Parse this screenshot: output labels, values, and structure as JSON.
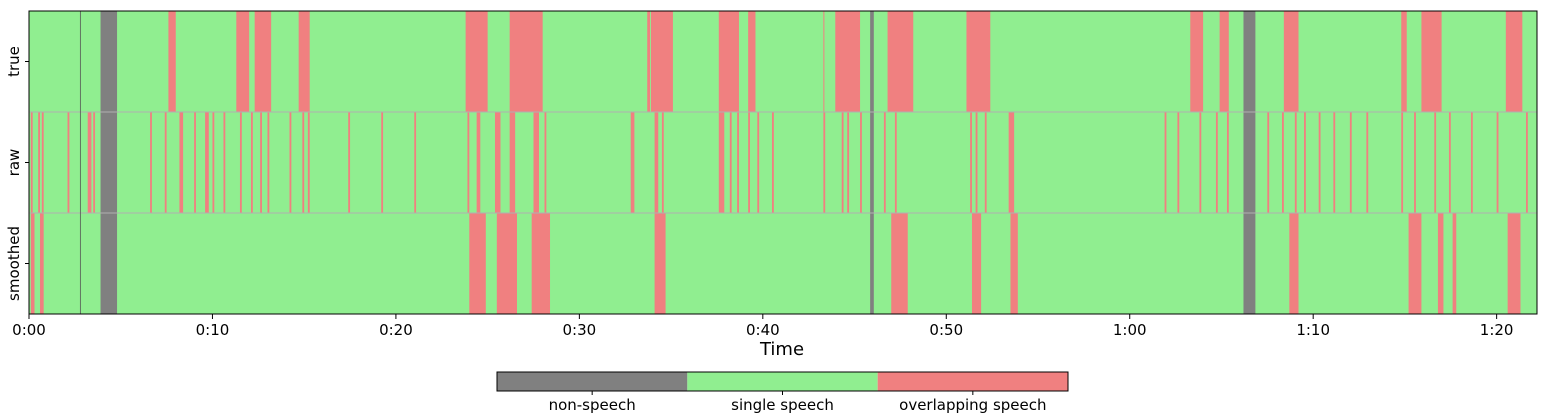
{
  "chart_data": {
    "type": "heatmap",
    "xlabel": "Time",
    "x_unit": "seconds",
    "xlim": [
      0,
      82.2
    ],
    "x_ticks": [
      {
        "value": 0,
        "label": "0:00"
      },
      {
        "value": 10,
        "label": "0:10"
      },
      {
        "value": 20,
        "label": "0:20"
      },
      {
        "value": 30,
        "label": "0:30"
      },
      {
        "value": 40,
        "label": "0:40"
      },
      {
        "value": 50,
        "label": "0:50"
      },
      {
        "value": 60,
        "label": "1:00"
      },
      {
        "value": 70,
        "label": "1:10"
      },
      {
        "value": 80,
        "label": "1:20"
      }
    ],
    "rows": [
      "true",
      "raw",
      "smoothed"
    ],
    "class_colors": {
      "non-speech": "#808080",
      "single speech": "#90EE90",
      "overlapping speech": "#F08080"
    },
    "legend": {
      "placement": "bottom-center",
      "entries": [
        "non-speech",
        "single speech",
        "overlapping speech"
      ]
    },
    "default_class": "single speech",
    "segments": {
      "true": [
        {
          "start": 3.9,
          "end": 4.8,
          "class": "non-speech"
        },
        {
          "start": 7.6,
          "end": 8.0,
          "class": "overlapping speech"
        },
        {
          "start": 11.3,
          "end": 12.0,
          "class": "overlapping speech"
        },
        {
          "start": 12.3,
          "end": 13.2,
          "class": "overlapping speech"
        },
        {
          "start": 14.7,
          "end": 15.3,
          "class": "overlapping speech"
        },
        {
          "start": 23.8,
          "end": 25.0,
          "class": "overlapping speech"
        },
        {
          "start": 26.2,
          "end": 28.0,
          "class": "overlapping speech"
        },
        {
          "start": 33.7,
          "end": 33.85,
          "class": "overlapping speech"
        },
        {
          "start": 33.9,
          "end": 35.1,
          "class": "overlapping speech"
        },
        {
          "start": 37.6,
          "end": 38.7,
          "class": "overlapping speech"
        },
        {
          "start": 39.2,
          "end": 39.6,
          "class": "overlapping speech"
        },
        {
          "start": 43.3,
          "end": 43.35,
          "class": "overlapping speech"
        },
        {
          "start": 43.95,
          "end": 45.3,
          "class": "overlapping speech"
        },
        {
          "start": 45.85,
          "end": 46.05,
          "class": "non-speech"
        },
        {
          "start": 46.8,
          "end": 48.2,
          "class": "overlapping speech"
        },
        {
          "start": 51.1,
          "end": 52.4,
          "class": "overlapping speech"
        },
        {
          "start": 63.3,
          "end": 64.0,
          "class": "overlapping speech"
        },
        {
          "start": 64.9,
          "end": 65.4,
          "class": "overlapping speech"
        },
        {
          "start": 66.2,
          "end": 66.85,
          "class": "non-speech"
        },
        {
          "start": 68.4,
          "end": 69.2,
          "class": "overlapping speech"
        },
        {
          "start": 74.8,
          "end": 75.1,
          "class": "overlapping speech"
        },
        {
          "start": 75.9,
          "end": 77.0,
          "class": "overlapping speech"
        },
        {
          "start": 80.5,
          "end": 81.4,
          "class": "overlapping speech"
        }
      ],
      "raw": [
        {
          "start": 0.1,
          "end": 0.2,
          "class": "overlapping speech"
        },
        {
          "start": 0.5,
          "end": 0.6,
          "class": "overlapping speech"
        },
        {
          "start": 0.7,
          "end": 0.8,
          "class": "overlapping speech"
        },
        {
          "start": 2.1,
          "end": 2.2,
          "class": "overlapping speech"
        },
        {
          "start": 3.2,
          "end": 3.4,
          "class": "overlapping speech"
        },
        {
          "start": 3.5,
          "end": 3.6,
          "class": "overlapping speech"
        },
        {
          "start": 3.9,
          "end": 4.8,
          "class": "non-speech"
        },
        {
          "start": 6.6,
          "end": 6.7,
          "class": "overlapping speech"
        },
        {
          "start": 7.4,
          "end": 7.5,
          "class": "overlapping speech"
        },
        {
          "start": 8.2,
          "end": 8.4,
          "class": "overlapping speech"
        },
        {
          "start": 9.0,
          "end": 9.1,
          "class": "overlapping speech"
        },
        {
          "start": 9.6,
          "end": 9.8,
          "class": "overlapping speech"
        },
        {
          "start": 10.0,
          "end": 10.1,
          "class": "overlapping speech"
        },
        {
          "start": 10.6,
          "end": 10.7,
          "class": "overlapping speech"
        },
        {
          "start": 11.5,
          "end": 11.6,
          "class": "overlapping speech"
        },
        {
          "start": 12.1,
          "end": 12.2,
          "class": "overlapping speech"
        },
        {
          "start": 12.6,
          "end": 12.7,
          "class": "overlapping speech"
        },
        {
          "start": 13.0,
          "end": 13.1,
          "class": "overlapping speech"
        },
        {
          "start": 14.2,
          "end": 14.3,
          "class": "overlapping speech"
        },
        {
          "start": 14.9,
          "end": 15.0,
          "class": "overlapping speech"
        },
        {
          "start": 15.2,
          "end": 15.3,
          "class": "overlapping speech"
        },
        {
          "start": 17.4,
          "end": 17.5,
          "class": "overlapping speech"
        },
        {
          "start": 19.2,
          "end": 19.3,
          "class": "overlapping speech"
        },
        {
          "start": 21.0,
          "end": 21.1,
          "class": "overlapping speech"
        },
        {
          "start": 23.9,
          "end": 24.0,
          "class": "overlapping speech"
        },
        {
          "start": 24.4,
          "end": 24.6,
          "class": "overlapping speech"
        },
        {
          "start": 25.4,
          "end": 25.7,
          "class": "overlapping speech"
        },
        {
          "start": 26.2,
          "end": 26.5,
          "class": "overlapping speech"
        },
        {
          "start": 27.5,
          "end": 27.8,
          "class": "overlapping speech"
        },
        {
          "start": 28.1,
          "end": 28.2,
          "class": "overlapping speech"
        },
        {
          "start": 32.8,
          "end": 33.0,
          "class": "overlapping speech"
        },
        {
          "start": 34.1,
          "end": 34.3,
          "class": "overlapping speech"
        },
        {
          "start": 34.5,
          "end": 34.6,
          "class": "overlapping speech"
        },
        {
          "start": 37.6,
          "end": 37.9,
          "class": "overlapping speech"
        },
        {
          "start": 38.2,
          "end": 38.3,
          "class": "overlapping speech"
        },
        {
          "start": 38.6,
          "end": 38.7,
          "class": "overlapping speech"
        },
        {
          "start": 39.2,
          "end": 39.3,
          "class": "overlapping speech"
        },
        {
          "start": 39.7,
          "end": 39.8,
          "class": "overlapping speech"
        },
        {
          "start": 40.5,
          "end": 40.6,
          "class": "overlapping speech"
        },
        {
          "start": 43.3,
          "end": 43.4,
          "class": "overlapping speech"
        },
        {
          "start": 44.3,
          "end": 44.4,
          "class": "overlapping speech"
        },
        {
          "start": 44.6,
          "end": 44.7,
          "class": "overlapping speech"
        },
        {
          "start": 45.3,
          "end": 45.4,
          "class": "overlapping speech"
        },
        {
          "start": 45.85,
          "end": 46.05,
          "class": "non-speech"
        },
        {
          "start": 46.6,
          "end": 46.7,
          "class": "overlapping speech"
        },
        {
          "start": 47.2,
          "end": 47.3,
          "class": "overlapping speech"
        },
        {
          "start": 51.3,
          "end": 51.4,
          "class": "overlapping speech"
        },
        {
          "start": 51.6,
          "end": 51.7,
          "class": "overlapping speech"
        },
        {
          "start": 52.1,
          "end": 52.2,
          "class": "overlapping speech"
        },
        {
          "start": 53.4,
          "end": 53.7,
          "class": "overlapping speech"
        },
        {
          "start": 61.9,
          "end": 62.0,
          "class": "overlapping speech"
        },
        {
          "start": 62.6,
          "end": 62.7,
          "class": "overlapping speech"
        },
        {
          "start": 63.8,
          "end": 63.9,
          "class": "overlapping speech"
        },
        {
          "start": 64.7,
          "end": 64.8,
          "class": "overlapping speech"
        },
        {
          "start": 65.3,
          "end": 65.4,
          "class": "overlapping speech"
        },
        {
          "start": 66.2,
          "end": 66.85,
          "class": "non-speech"
        },
        {
          "start": 67.5,
          "end": 67.6,
          "class": "overlapping speech"
        },
        {
          "start": 68.3,
          "end": 68.4,
          "class": "overlapping speech"
        },
        {
          "start": 69.0,
          "end": 69.1,
          "class": "overlapping speech"
        },
        {
          "start": 69.5,
          "end": 69.6,
          "class": "overlapping speech"
        },
        {
          "start": 70.3,
          "end": 70.4,
          "class": "overlapping speech"
        },
        {
          "start": 71.1,
          "end": 71.2,
          "class": "overlapping speech"
        },
        {
          "start": 72.0,
          "end": 72.1,
          "class": "overlapping speech"
        },
        {
          "start": 72.9,
          "end": 73.0,
          "class": "overlapping speech"
        },
        {
          "start": 74.8,
          "end": 74.9,
          "class": "overlapping speech"
        },
        {
          "start": 75.5,
          "end": 75.6,
          "class": "overlapping speech"
        },
        {
          "start": 76.6,
          "end": 76.7,
          "class": "overlapping speech"
        },
        {
          "start": 77.4,
          "end": 77.5,
          "class": "overlapping speech"
        },
        {
          "start": 78.6,
          "end": 78.7,
          "class": "overlapping speech"
        },
        {
          "start": 80.0,
          "end": 80.1,
          "class": "overlapping speech"
        },
        {
          "start": 81.6,
          "end": 81.7,
          "class": "overlapping speech"
        }
      ],
      "smoothed": [
        {
          "start": 0.1,
          "end": 0.3,
          "class": "overlapping speech"
        },
        {
          "start": 0.6,
          "end": 0.8,
          "class": "overlapping speech"
        },
        {
          "start": 3.9,
          "end": 4.8,
          "class": "non-speech"
        },
        {
          "start": 24.0,
          "end": 24.9,
          "class": "overlapping speech"
        },
        {
          "start": 25.5,
          "end": 26.6,
          "class": "overlapping speech"
        },
        {
          "start": 27.4,
          "end": 28.4,
          "class": "overlapping speech"
        },
        {
          "start": 34.1,
          "end": 34.7,
          "class": "overlapping speech"
        },
        {
          "start": 45.85,
          "end": 46.05,
          "class": "non-speech"
        },
        {
          "start": 47.0,
          "end": 47.9,
          "class": "overlapping speech"
        },
        {
          "start": 51.4,
          "end": 51.9,
          "class": "overlapping speech"
        },
        {
          "start": 53.5,
          "end": 53.9,
          "class": "overlapping speech"
        },
        {
          "start": 66.2,
          "end": 66.85,
          "class": "non-speech"
        },
        {
          "start": 68.7,
          "end": 69.2,
          "class": "overlapping speech"
        },
        {
          "start": 75.2,
          "end": 75.9,
          "class": "overlapping speech"
        },
        {
          "start": 76.8,
          "end": 77.1,
          "class": "overlapping speech"
        },
        {
          "start": 77.6,
          "end": 77.8,
          "class": "overlapping speech"
        },
        {
          "start": 80.6,
          "end": 81.3,
          "class": "overlapping speech"
        }
      ]
    }
  }
}
